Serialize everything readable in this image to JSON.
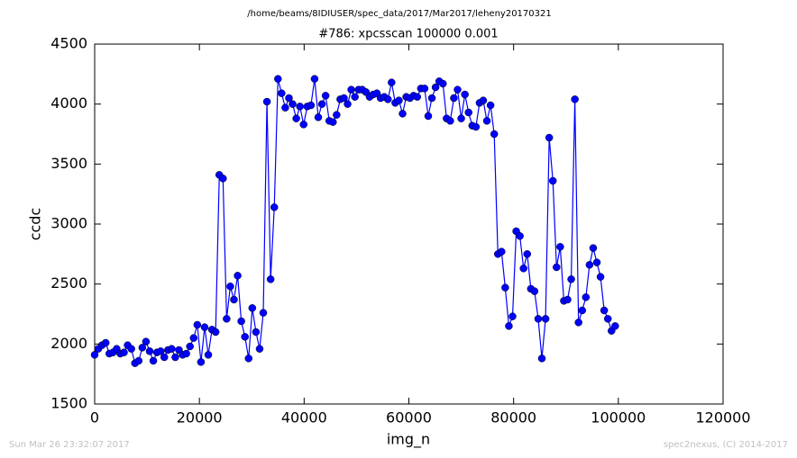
{
  "chart_data": {
    "type": "line",
    "title": "/home/beams/8IDIUSER/spec_data/2017/Mar2017/leheny20170321",
    "subtitle": "#786: xpcsscan 100000 0.001",
    "x_label": "img_n",
    "y_label": "ccdc",
    "footer_left": "Sun Mar 26 23:32:07 2017",
    "footer_right": "spec2nexus, (C) 2014-2017",
    "xlim": [
      0,
      120000
    ],
    "xticks": [
      0,
      20000,
      40000,
      60000,
      80000,
      100000,
      120000
    ],
    "ylim": [
      1500,
      4500
    ],
    "yticks": [
      1500,
      2000,
      2500,
      3000,
      3500,
      4000,
      4500
    ],
    "grid": false,
    "x": [
      0,
      700,
      1400,
      2100,
      2800,
      3500,
      4200,
      4900,
      5600,
      6300,
      7000,
      7700,
      8400,
      9100,
      9800,
      10500,
      11200,
      11900,
      12600,
      13300,
      14000,
      14700,
      15400,
      16100,
      16800,
      17500,
      18200,
      18900,
      19600,
      20300,
      21000,
      21700,
      22400,
      23100,
      23800,
      24500,
      25200,
      25900,
      26600,
      27300,
      28000,
      28700,
      29400,
      30100,
      30800,
      31500,
      32200,
      32900,
      33600,
      34300,
      35000,
      35700,
      36400,
      37100,
      37800,
      38500,
      39200,
      39900,
      40600,
      41300,
      42000,
      42700,
      43400,
      44100,
      44800,
      45500,
      46200,
      46900,
      47600,
      48300,
      49000,
      49700,
      50400,
      51100,
      51800,
      52500,
      53200,
      53900,
      54600,
      55300,
      56000,
      56700,
      57400,
      58100,
      58800,
      59500,
      60200,
      60900,
      61600,
      62300,
      63000,
      63700,
      64400,
      65100,
      65800,
      66500,
      67200,
      67900,
      68600,
      69300,
      70000,
      70700,
      71400,
      72100,
      72800,
      73500,
      74200,
      74900,
      75600,
      76300,
      77000,
      77700,
      78400,
      79100,
      79800,
      80500,
      81200,
      81900,
      82600,
      83300,
      84000,
      84700,
      85400,
      86100,
      86800,
      87500,
      88200,
      88900,
      89600,
      90300,
      91000,
      91700,
      92400,
      93100,
      93800,
      94500,
      95200,
      95900,
      96600,
      97300,
      98000,
      98700,
      99400
    ],
    "series": [
      {
        "color": "#0000ff",
        "values": [
          1910,
          1960,
          1990,
          2010,
          1920,
          1930,
          1960,
          1920,
          1930,
          1990,
          1960,
          1840,
          1860,
          1970,
          2020,
          1940,
          1860,
          1930,
          1940,
          1890,
          1950,
          1960,
          1890,
          1950,
          1910,
          1920,
          1980,
          2050,
          2160,
          1850,
          2140,
          1910,
          2120,
          2100,
          3410,
          3380,
          2210,
          2480,
          2370,
          2570,
          2190,
          2060,
          1880,
          2300,
          2100,
          1960,
          2260,
          4020,
          2540,
          3140,
          4210,
          4090,
          3970,
          4050,
          4000,
          3880,
          3980,
          3830,
          3980,
          3990,
          4210,
          3890,
          4000,
          4070,
          3860,
          3850,
          3910,
          4040,
          4050,
          4000,
          4120,
          4060,
          4120,
          4120,
          4100,
          4060,
          4080,
          4090,
          4050,
          4060,
          4040,
          4180,
          4010,
          4030,
          3920,
          4060,
          4050,
          4070,
          4060,
          4130,
          4130,
          3900,
          4050,
          4140,
          4190,
          4170,
          3880,
          3860,
          4050,
          4120,
          3880,
          4080,
          3930,
          3820,
          3810,
          4010,
          4030,
          3860,
          3990,
          3750,
          2750,
          2770,
          2470,
          2150,
          2230,
          2940,
          2900,
          2630,
          2750,
          2460,
          2440,
          2210,
          1880,
          2210,
          3720,
          3360,
          2640,
          2810,
          2360,
          2370,
          2540,
          4040,
          2180,
          2280,
          2390,
          2660,
          2800,
          2680,
          2560,
          2280,
          2210,
          2110,
          2150
        ]
      }
    ]
  }
}
